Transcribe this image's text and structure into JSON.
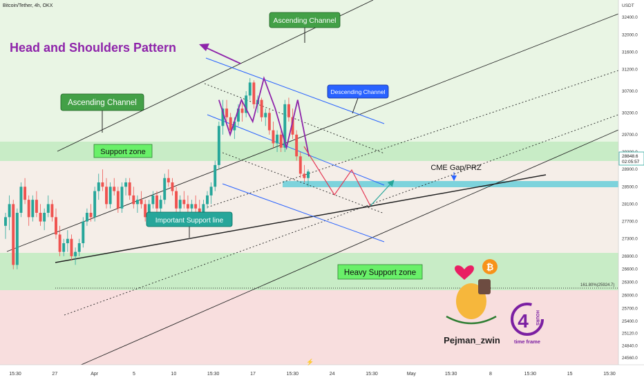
{
  "symbol_title": "Bitcoin/Tether, 4h, OKX",
  "currency": "USDT",
  "y_axis_ticks": [
    "32400.0",
    "32000.0",
    "31600.0",
    "31200.0",
    "30700.0",
    "30200.0",
    "29700.0",
    "29300.0",
    "28900.0",
    "28500.0",
    "28100.0",
    "27700.0",
    "27300.0",
    "26900.0",
    "26600.0",
    "26300.0",
    "26000.0",
    "25700.0",
    "25400.0",
    "25120.0",
    "24840.0",
    "24560.0"
  ],
  "x_axis_ticks": [
    "15:30",
    "27",
    "Apr",
    "5",
    "10",
    "15:30",
    "17",
    "15:30",
    "24",
    "15:30",
    "May",
    "15:30",
    "8",
    "15:30",
    "15",
    "15:30"
  ],
  "price_badge": {
    "price": "28848.6",
    "countdown": "02:05:57"
  },
  "fib_label": "161.80%(25924.7)",
  "annotations": {
    "main_title": "Head and Shoulders Pattern",
    "ascending_channel_top": "Ascending Channel",
    "ascending_channel_left": "Ascending Channel",
    "descending_channel": "Descending Channel",
    "support_zone": "Support zone",
    "important_support_line": "Important Support line",
    "cme_gap": "CME Gap/PRZ",
    "heavy_support_zone": "Heavy Support zone"
  },
  "branding": {
    "author": "Pejman_zwin",
    "timeframe_text": "time frame",
    "four_label": "4",
    "hours_label": "HOURS"
  },
  "colors": {
    "bull": "#26a69a",
    "bear": "#ef5350",
    "green_zone": "#c8ecc6",
    "upper_bg": "#e9f5e4",
    "lower_bg": "#f8dede",
    "cme_box": "#7dd3dc",
    "blue_line": "#2962ff",
    "purple": "#8e24aa",
    "label_green": "#43a047"
  },
  "chart_data": {
    "type": "candlestick",
    "y_range": [
      24400,
      32800
    ],
    "support_zone": [
      28780,
      29200
    ],
    "heavy_support_zone": [
      25850,
      26650
    ],
    "cme_gap_zone": [
      28150,
      28260
    ],
    "fib_level": 25924.7,
    "last_price": 28848.6,
    "candles": [
      {
        "o": 27600,
        "h": 27900,
        "l": 27300,
        "c": 27800
      },
      {
        "o": 27800,
        "h": 28300,
        "l": 27500,
        "c": 28100
      },
      {
        "o": 28100,
        "h": 28200,
        "l": 26600,
        "c": 26700
      },
      {
        "o": 26700,
        "h": 28000,
        "l": 26600,
        "c": 27900
      },
      {
        "o": 27900,
        "h": 28600,
        "l": 27800,
        "c": 28500
      },
      {
        "o": 28500,
        "h": 28700,
        "l": 28100,
        "c": 28200
      },
      {
        "o": 28200,
        "h": 28300,
        "l": 27600,
        "c": 27800
      },
      {
        "o": 27800,
        "h": 28300,
        "l": 27700,
        "c": 28200
      },
      {
        "o": 28200,
        "h": 28400,
        "l": 27800,
        "c": 27900
      },
      {
        "o": 27900,
        "h": 28100,
        "l": 27600,
        "c": 27700
      },
      {
        "o": 27700,
        "h": 28000,
        "l": 27500,
        "c": 27900
      },
      {
        "o": 27900,
        "h": 28300,
        "l": 27800,
        "c": 28100
      },
      {
        "o": 28100,
        "h": 28200,
        "l": 27700,
        "c": 27800
      },
      {
        "o": 27800,
        "h": 28000,
        "l": 27300,
        "c": 27400
      },
      {
        "o": 27400,
        "h": 27600,
        "l": 26900,
        "c": 27000
      },
      {
        "o": 27000,
        "h": 27300,
        "l": 26900,
        "c": 27200
      },
      {
        "o": 27200,
        "h": 27500,
        "l": 27000,
        "c": 27300
      },
      {
        "o": 27300,
        "h": 27400,
        "l": 26800,
        "c": 26900
      },
      {
        "o": 26900,
        "h": 27100,
        "l": 26700,
        "c": 27000
      },
      {
        "o": 27000,
        "h": 27300,
        "l": 26900,
        "c": 27200
      },
      {
        "o": 27200,
        "h": 27800,
        "l": 27100,
        "c": 27700
      },
      {
        "o": 27700,
        "h": 28000,
        "l": 27600,
        "c": 27900
      },
      {
        "o": 27900,
        "h": 28100,
        "l": 27700,
        "c": 27800
      },
      {
        "o": 27800,
        "h": 28500,
        "l": 27700,
        "c": 28400
      },
      {
        "o": 28400,
        "h": 28800,
        "l": 28200,
        "c": 28600
      },
      {
        "o": 28600,
        "h": 28900,
        "l": 28400,
        "c": 28500
      },
      {
        "o": 28500,
        "h": 28700,
        "l": 28000,
        "c": 28100
      },
      {
        "o": 28100,
        "h": 28600,
        "l": 28000,
        "c": 28500
      },
      {
        "o": 28500,
        "h": 28700,
        "l": 28300,
        "c": 28400
      },
      {
        "o": 28400,
        "h": 28500,
        "l": 27900,
        "c": 28000
      },
      {
        "o": 28000,
        "h": 28600,
        "l": 27900,
        "c": 28500
      },
      {
        "o": 28500,
        "h": 28700,
        "l": 28300,
        "c": 28600
      },
      {
        "o": 28600,
        "h": 28700,
        "l": 28200,
        "c": 28300
      },
      {
        "o": 28300,
        "h": 28500,
        "l": 28000,
        "c": 28100
      },
      {
        "o": 28100,
        "h": 28300,
        "l": 27900,
        "c": 28200
      },
      {
        "o": 28200,
        "h": 28400,
        "l": 28000,
        "c": 28100
      },
      {
        "o": 28100,
        "h": 28200,
        "l": 27700,
        "c": 27800
      },
      {
        "o": 27800,
        "h": 28200,
        "l": 27700,
        "c": 28100
      },
      {
        "o": 28100,
        "h": 28400,
        "l": 28000,
        "c": 28300
      },
      {
        "o": 28300,
        "h": 28400,
        "l": 27900,
        "c": 28000
      },
      {
        "o": 28000,
        "h": 28300,
        "l": 27800,
        "c": 28200
      },
      {
        "o": 28200,
        "h": 28800,
        "l": 28100,
        "c": 28700
      },
      {
        "o": 28700,
        "h": 28900,
        "l": 28500,
        "c": 28600
      },
      {
        "o": 28600,
        "h": 28700,
        "l": 28300,
        "c": 28400
      },
      {
        "o": 28400,
        "h": 28500,
        "l": 27900,
        "c": 28000
      },
      {
        "o": 28000,
        "h": 28300,
        "l": 27900,
        "c": 28200
      },
      {
        "o": 28200,
        "h": 28400,
        "l": 28000,
        "c": 28100
      },
      {
        "o": 28100,
        "h": 28300,
        "l": 27900,
        "c": 28000
      },
      {
        "o": 28000,
        "h": 28200,
        "l": 27800,
        "c": 28100
      },
      {
        "o": 28100,
        "h": 28300,
        "l": 27900,
        "c": 28000
      },
      {
        "o": 28000,
        "h": 28200,
        "l": 27800,
        "c": 27900
      },
      {
        "o": 27900,
        "h": 28200,
        "l": 27800,
        "c": 28100
      },
      {
        "o": 28100,
        "h": 28400,
        "l": 28000,
        "c": 28300
      },
      {
        "o": 28300,
        "h": 28600,
        "l": 28100,
        "c": 28500
      },
      {
        "o": 28500,
        "h": 29100,
        "l": 28400,
        "c": 29000
      },
      {
        "o": 29000,
        "h": 30000,
        "l": 28900,
        "c": 29900
      },
      {
        "o": 29900,
        "h": 30500,
        "l": 29700,
        "c": 30300
      },
      {
        "o": 30300,
        "h": 30500,
        "l": 29900,
        "c": 30100
      },
      {
        "o": 30100,
        "h": 30200,
        "l": 29700,
        "c": 29800
      },
      {
        "o": 29800,
        "h": 30100,
        "l": 29600,
        "c": 30000
      },
      {
        "o": 30000,
        "h": 30400,
        "l": 29900,
        "c": 30300
      },
      {
        "o": 30300,
        "h": 30500,
        "l": 30000,
        "c": 30200
      },
      {
        "o": 30200,
        "h": 30700,
        "l": 30100,
        "c": 30600
      },
      {
        "o": 30600,
        "h": 31000,
        "l": 30500,
        "c": 30900
      },
      {
        "o": 30900,
        "h": 30950,
        "l": 30300,
        "c": 30400
      },
      {
        "o": 30400,
        "h": 30600,
        "l": 30200,
        "c": 30500
      },
      {
        "o": 30500,
        "h": 30550,
        "l": 30000,
        "c": 30100
      },
      {
        "o": 30100,
        "h": 30300,
        "l": 29900,
        "c": 30200
      },
      {
        "o": 30200,
        "h": 30300,
        "l": 29700,
        "c": 29800
      },
      {
        "o": 29800,
        "h": 30000,
        "l": 29400,
        "c": 29500
      },
      {
        "o": 29500,
        "h": 29800,
        "l": 29300,
        "c": 29700
      },
      {
        "o": 29700,
        "h": 29800,
        "l": 29300,
        "c": 29400
      },
      {
        "o": 29400,
        "h": 30500,
        "l": 29300,
        "c": 30400
      },
      {
        "o": 30400,
        "h": 30550,
        "l": 30000,
        "c": 30100
      },
      {
        "o": 30100,
        "h": 30300,
        "l": 29600,
        "c": 29700
      },
      {
        "o": 29700,
        "h": 29800,
        "l": 29100,
        "c": 29200
      },
      {
        "o": 29200,
        "h": 29300,
        "l": 28700,
        "c": 28800
      },
      {
        "o": 28800,
        "h": 29000,
        "l": 28600,
        "c": 28700
      },
      {
        "o": 28700,
        "h": 28900,
        "l": 28500,
        "c": 28850
      }
    ],
    "head_and_shoulders_path": [
      [
        30500,
        1
      ],
      [
        29700,
        2
      ],
      [
        30500,
        3
      ],
      [
        30000,
        4
      ],
      [
        31000,
        5
      ],
      [
        30300,
        6
      ],
      [
        29400,
        7
      ],
      [
        30500,
        8
      ],
      [
        29200,
        9
      ]
    ]
  }
}
